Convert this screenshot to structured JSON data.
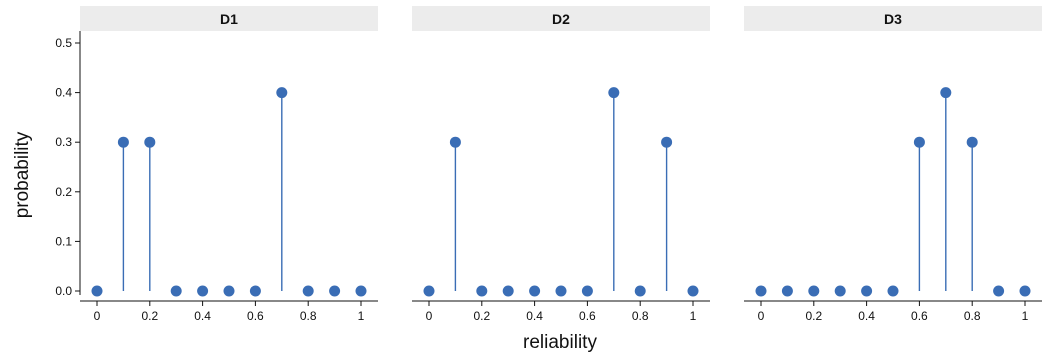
{
  "chart_data": {
    "type": "lollipop",
    "xlabel": "reliability",
    "ylabel": "probability",
    "xlim": [
      0,
      1
    ],
    "ylim": [
      0,
      0.5
    ],
    "x_ticks": [
      "0",
      "0.2",
      "0.4",
      "0.6",
      "0.8",
      "1"
    ],
    "y_ticks": [
      "0.0",
      "0.1",
      "0.2",
      "0.3",
      "0.4",
      "0.5"
    ],
    "color": "#3a6db5",
    "strip_color": "#ececec",
    "x": [
      0,
      0.1,
      0.2,
      0.3,
      0.4,
      0.5,
      0.6,
      0.7,
      0.8,
      0.9,
      1.0
    ],
    "panels": [
      {
        "name": "D1",
        "values": [
          0,
          0.3,
          0.3,
          0,
          0,
          0,
          0,
          0.4,
          0,
          0,
          0
        ]
      },
      {
        "name": "D2",
        "values": [
          0,
          0.3,
          0,
          0,
          0,
          0,
          0,
          0.4,
          0,
          0.3,
          0
        ]
      },
      {
        "name": "D3",
        "values": [
          0,
          0,
          0,
          0,
          0,
          0,
          0.3,
          0.4,
          0.3,
          0,
          0
        ]
      }
    ]
  }
}
